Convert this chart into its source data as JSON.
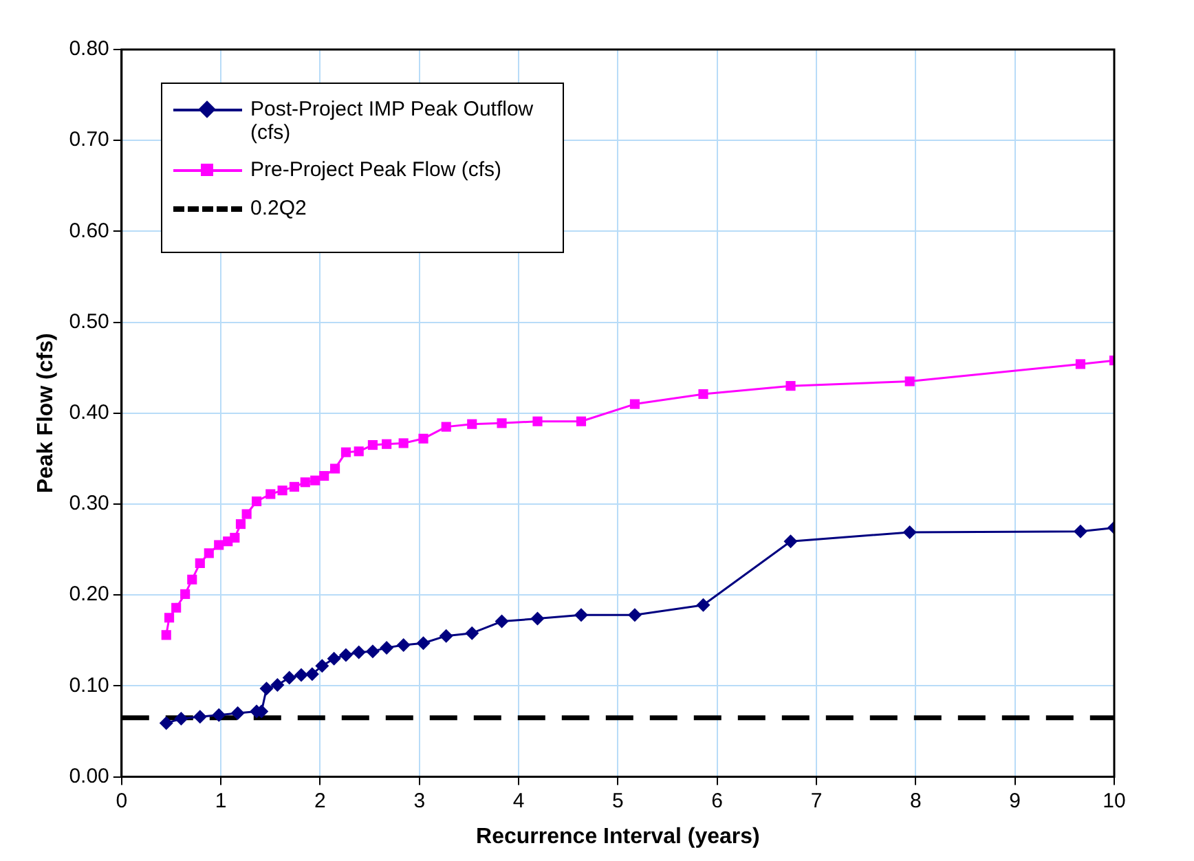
{
  "chart_data": {
    "type": "line",
    "xlabel": "Recurrence Interval (years)",
    "ylabel": "Peak Flow (cfs)",
    "xlim": [
      0,
      10
    ],
    "xticks": [
      0,
      1,
      2,
      3,
      4,
      5,
      6,
      7,
      8,
      9,
      10
    ],
    "ylim": [
      0,
      0.8
    ],
    "yticks": [
      {
        "value": 0,
        "label": "0.00"
      },
      {
        "value": 0.1,
        "label": "0.10"
      },
      {
        "value": 0.2,
        "label": "0.20"
      },
      {
        "value": 0.3,
        "label": "0.30"
      },
      {
        "value": 0.4,
        "label": "0.40"
      },
      {
        "value": 0.5,
        "label": "0.50"
      },
      {
        "value": 0.6,
        "label": "0.60"
      },
      {
        "value": 0.7,
        "label": "0.70"
      },
      {
        "value": 0.8,
        "label": "0.80"
      }
    ],
    "grid": true,
    "legend": "top left",
    "line_style": "solid",
    "series": [
      {
        "name": "Post-Project IMP Peak Outflow (cfs)",
        "color": "#000080",
        "marker": "diamond",
        "x": [
          0.45,
          0.6,
          0.79,
          0.98,
          1.17,
          1.36,
          1.41,
          1.46,
          1.57,
          1.69,
          1.81,
          1.92,
          2.02,
          2.14,
          2.26,
          2.39,
          2.53,
          2.67,
          2.84,
          3.04,
          3.27,
          3.53,
          3.83,
          4.19,
          4.63,
          5.17,
          5.86,
          6.74,
          7.94,
          9.66,
          10
        ],
        "values": [
          0.059,
          0.064,
          0.066,
          0.068,
          0.07,
          0.072,
          0.072,
          0.097,
          0.101,
          0.109,
          0.112,
          0.113,
          0.122,
          0.13,
          0.134,
          0.137,
          0.138,
          0.142,
          0.145,
          0.147,
          0.155,
          0.158,
          0.171,
          0.174,
          0.178,
          0.178,
          0.189,
          0.259,
          0.269,
          0.27,
          0.274
        ]
      },
      {
        "name": "Pre-Project Peak Flow (cfs)",
        "color": "#ff00ff",
        "marker": "square",
        "x": [
          0.45,
          0.48,
          0.55,
          0.64,
          0.71,
          0.79,
          0.88,
          0.98,
          1.07,
          1.14,
          1.2,
          1.26,
          1.36,
          1.5,
          1.62,
          1.74,
          1.85,
          1.95,
          2.04,
          2.15,
          2.26,
          2.39,
          2.53,
          2.67,
          2.84,
          3.04,
          3.27,
          3.53,
          3.83,
          4.19,
          4.63,
          5.17,
          5.86,
          6.74,
          7.94,
          9.66,
          10
        ],
        "values": [
          0.156,
          0.175,
          0.186,
          0.201,
          0.217,
          0.235,
          0.246,
          0.255,
          0.259,
          0.263,
          0.278,
          0.289,
          0.303,
          0.311,
          0.315,
          0.319,
          0.324,
          0.326,
          0.331,
          0.339,
          0.357,
          0.358,
          0.365,
          0.366,
          0.367,
          0.372,
          0.385,
          0.388,
          0.389,
          0.391,
          0.391,
          0.41,
          0.421,
          0.43,
          0.435,
          0.454,
          0.458
        ]
      }
    ],
    "ref_lines": [
      {
        "axis": "y",
        "value": 0.065,
        "label": "0.2Q2",
        "color": "#000000",
        "line_style": "dashed"
      }
    ]
  }
}
